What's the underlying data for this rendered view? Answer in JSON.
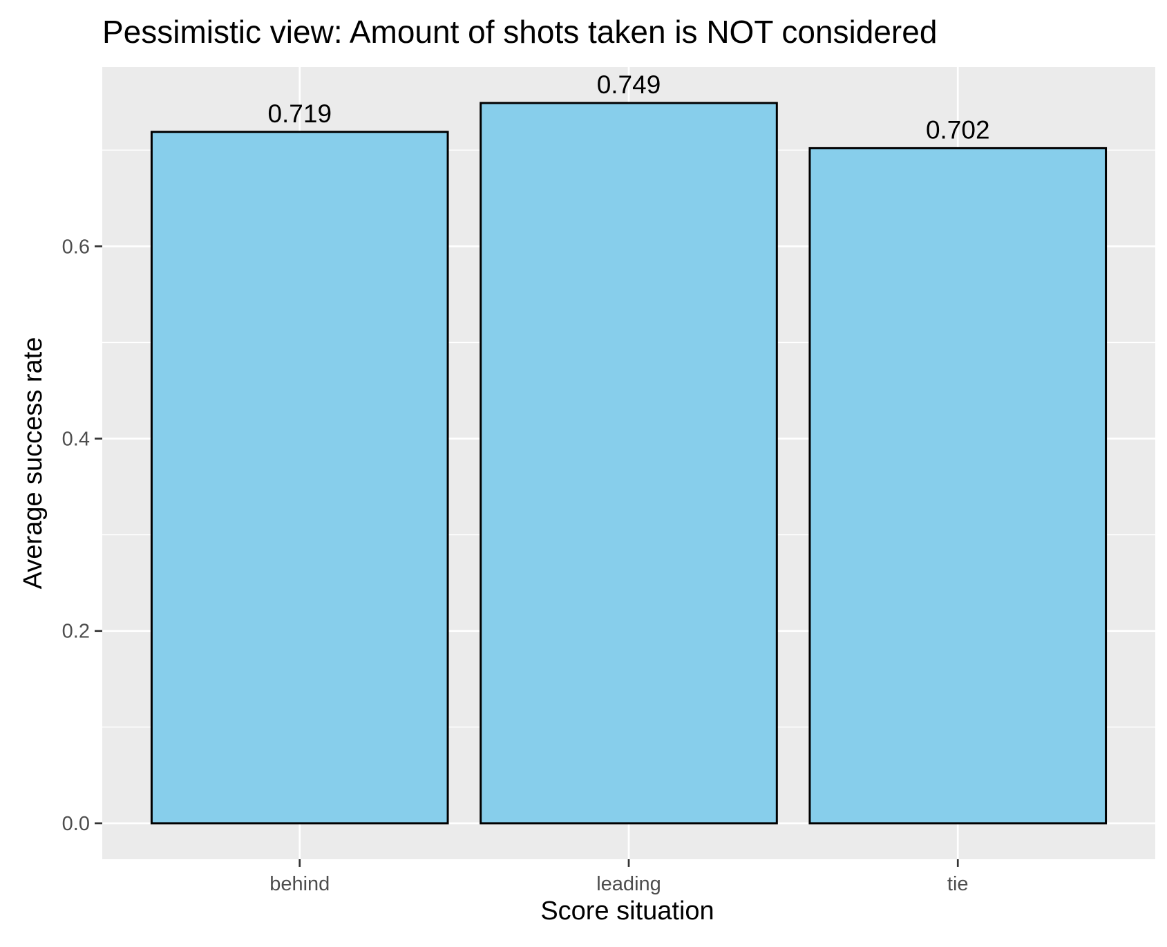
{
  "chart_data": {
    "type": "bar",
    "title": "Pessimistic view: Amount of shots taken is NOT considered",
    "xlabel": "Score situation",
    "ylabel": "Average success rate",
    "categories": [
      "behind",
      "leading",
      "tie"
    ],
    "values": [
      0.719,
      0.749,
      0.702
    ],
    "data_labels": [
      "0.719",
      "0.749",
      "0.702"
    ],
    "yticks": [
      0.0,
      0.2,
      0.4,
      0.6
    ],
    "ytick_labels": [
      "0.0",
      "0.2",
      "0.4",
      "0.6"
    ],
    "ylim": [
      -0.0374,
      0.7864
    ],
    "grid": true,
    "legend": "none",
    "colors": {
      "panel_background": "#ebebeb",
      "grid": "#ffffff",
      "bar_fill": "#87ceeb",
      "bar_stroke": "#000000",
      "tick_label": "#4d4d4d",
      "tick_mark": "#333333"
    }
  }
}
